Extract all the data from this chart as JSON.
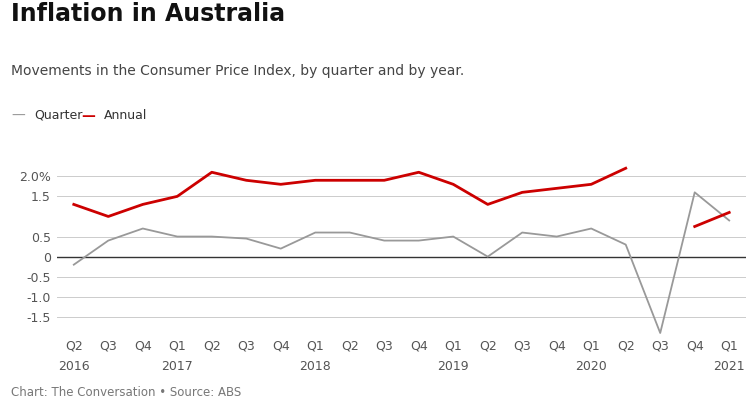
{
  "title": "Inflation in Australia",
  "subtitle": "Movements in the Consumer Price Index, by quarter and by year.",
  "source": "Chart: The Conversation • Source: ABS",
  "x_tick_labels": [
    "Q2",
    "Q3",
    "Q4",
    "Q1",
    "Q2",
    "Q3",
    "Q4",
    "Q1",
    "Q2",
    "Q3",
    "Q4",
    "Q1",
    "Q2",
    "Q3",
    "Q4",
    "Q1",
    "Q2",
    "Q3",
    "Q4",
    "Q1"
  ],
  "x_year_positions": [
    0,
    3,
    7,
    11,
    15,
    19
  ],
  "x_years": [
    "2016",
    "2017",
    "2018",
    "2019",
    "2020",
    "2021"
  ],
  "quarter_data": [
    -0.2,
    0.4,
    0.7,
    0.5,
    0.5,
    0.45,
    0.2,
    0.6,
    0.6,
    0.4,
    0.4,
    0.5,
    0.0,
    0.6,
    0.5,
    0.7,
    0.3,
    -1.9,
    1.6,
    0.9
  ],
  "annual_data": [
    1.3,
    1.0,
    1.3,
    1.5,
    2.1,
    1.9,
    1.8,
    1.9,
    1.9,
    1.9,
    2.1,
    1.8,
    1.3,
    1.6,
    1.7,
    1.8,
    2.2,
    null,
    0.75,
    1.1
  ],
  "ylim": [
    -2.0,
    2.5
  ],
  "yticks": [
    -1.5,
    -1.0,
    -0.5,
    0.0,
    0.5,
    1.5,
    2.0
  ],
  "ytick_labels": [
    "-1.5",
    "-1.0",
    "-0.5",
    "0",
    "0.5",
    "1.5",
    "2.0%"
  ],
  "quarter_color": "#999999",
  "annual_color": "#cc0000",
  "zero_line_color": "#333333",
  "bg_color": "#ffffff",
  "grid_color": "#cccccc",
  "title_fontsize": 17,
  "subtitle_fontsize": 10,
  "label_fontsize": 9,
  "source_fontsize": 8.5
}
